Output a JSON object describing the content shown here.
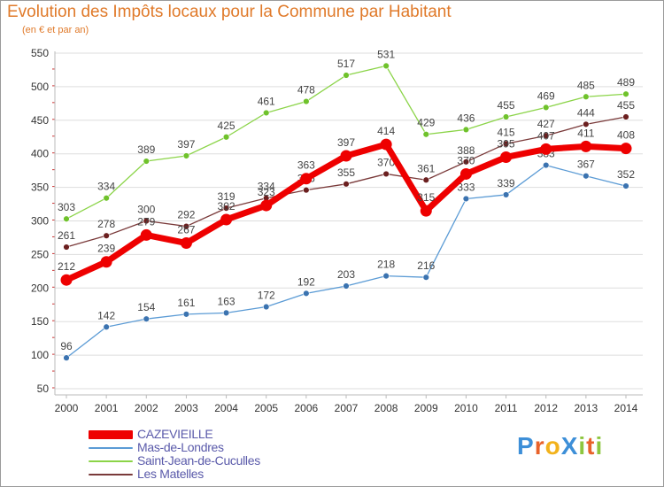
{
  "header": {
    "title": "Evolution des Impôts locaux pour la Commune par Habitant",
    "subtitle": "(en € et par an)"
  },
  "logo": {
    "text": "ProXiti",
    "letters": [
      "P",
      "r",
      "o",
      "X",
      "i",
      "t",
      "i"
    ],
    "colors": [
      "#3d8fd8",
      "#e8622a",
      "#f2b21b",
      "#3d8fd8",
      "#8dc63f",
      "#e8622a",
      "#8dc63f"
    ]
  },
  "chart_data": {
    "type": "line",
    "title": "Evolution des Impôts locaux pour la Commune par Habitant",
    "subtitle": "(en € et par an)",
    "categories": [
      "2000",
      "2001",
      "2002",
      "2003",
      "2004",
      "2005",
      "2006",
      "2007",
      "2008",
      "2009",
      "2010",
      "2011",
      "2012",
      "2013",
      "2014"
    ],
    "ylim": [
      50,
      550
    ],
    "yticks": [
      50,
      100,
      150,
      200,
      250,
      300,
      350,
      400,
      450,
      500,
      550
    ],
    "grid": "horizontal",
    "legend_position": "bottom-left",
    "series": [
      {
        "name": "Saint-Jean-de-Cuculles",
        "color": "#8bd448",
        "dot": "#6fc22b",
        "emphasis": false,
        "values": [
          303,
          334,
          389,
          397,
          425,
          461,
          478,
          517,
          531,
          429,
          436,
          455,
          469,
          485,
          489
        ]
      },
      {
        "name": "Les Matelles",
        "color": "#7a3a3a",
        "dot": "#6b1f1f",
        "emphasis": false,
        "values": [
          261,
          278,
          300,
          292,
          319,
          334,
          346,
          355,
          370,
          361,
          388,
          415,
          427,
          444,
          455
        ]
      },
      {
        "name": "Mas-de-Londres",
        "color": "#5b9bd5",
        "dot": "#3b73b0",
        "emphasis": false,
        "values": [
          96,
          142,
          154,
          161,
          163,
          172,
          192,
          203,
          218,
          216,
          333,
          339,
          383,
          367,
          352
        ]
      },
      {
        "name": "CAZEVIEILLE",
        "color": "#ee0000",
        "dot": "#ee0000",
        "emphasis": true,
        "values": [
          212,
          239,
          279,
          267,
          302,
          323,
          363,
          397,
          414,
          315,
          370,
          395,
          407,
          411,
          408
        ]
      }
    ],
    "legend_order": [
      "CAZEVIEILLE",
      "Mas-de-Londres",
      "Saint-Jean-de-Cuculles",
      "Les Matelles"
    ]
  }
}
